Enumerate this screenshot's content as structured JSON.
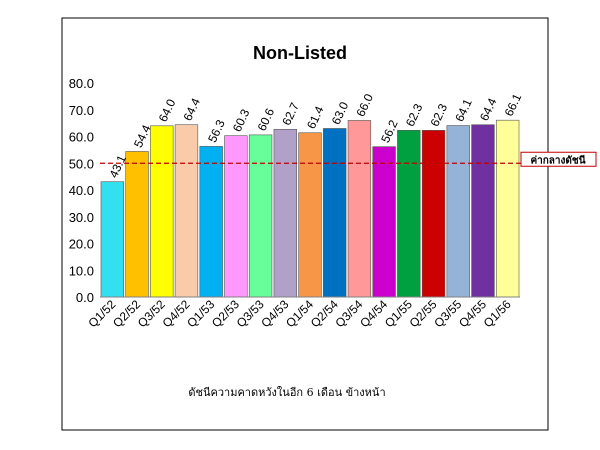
{
  "chart_data": {
    "type": "bar",
    "title": "Non-Listed",
    "xlabel": "ดัชนีความคาดหวังในอีก 6 เดือน ข้างหน้า",
    "ylabel": "",
    "ylim": [
      0,
      80
    ],
    "yticks": [
      "0.0",
      "10.0",
      "20.0",
      "30.0",
      "40.0",
      "50.0",
      "60.0",
      "70.0",
      "80.0"
    ],
    "grid": false,
    "categories": [
      "Q1/52",
      "Q2/52",
      "Q3/52",
      "Q4/52",
      "Q1/53",
      "Q2/53",
      "Q3/53",
      "Q4/53",
      "Q1/54",
      "Q2/54",
      "Q3/54",
      "Q4/54",
      "Q1/55",
      "Q2/55",
      "Q3/55",
      "Q4/55",
      "Q1/56"
    ],
    "values": [
      43.1,
      54.4,
      64.0,
      64.4,
      56.3,
      60.3,
      60.6,
      62.7,
      61.4,
      63.0,
      66.0,
      56.2,
      62.3,
      62.3,
      64.1,
      64.4,
      66.1
    ],
    "data_labels": [
      "43.1",
      "54.4",
      "64.0",
      "64.4",
      "56.3",
      "60.3",
      "60.6",
      "62.7",
      "61.4",
      "63.0",
      "66.0",
      "56.2",
      "62.3",
      "62.3",
      "64.1",
      "64.4",
      "66.1"
    ],
    "colors": [
      "#33e0f0",
      "#ffc000",
      "#ffff00",
      "#f9cba8",
      "#00b0f0",
      "#ff99ff",
      "#66ff99",
      "#b1a0c7",
      "#f79646",
      "#0070c0",
      "#ff9999",
      "#cc00cc",
      "#00a040",
      "#cc0000",
      "#95b3d7",
      "#7030a0",
      "#ffff99"
    ],
    "reference_line": {
      "value": 50,
      "label": "ค่ากลางดัชนี",
      "color": "#c00000"
    }
  }
}
